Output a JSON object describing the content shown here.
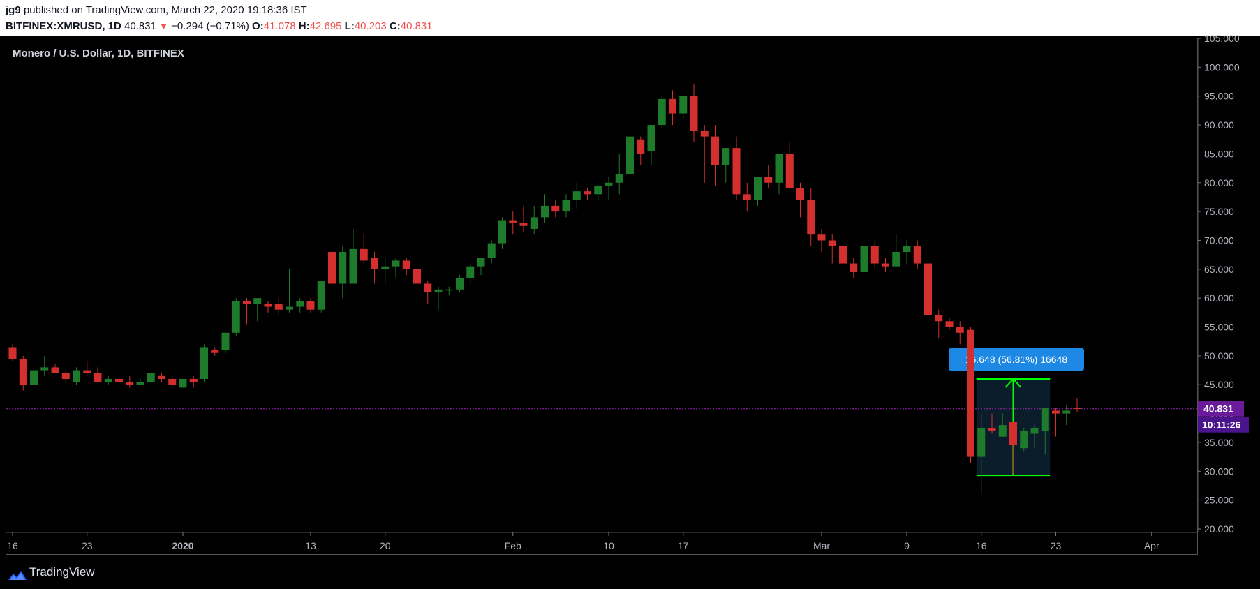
{
  "header": {
    "user": "jg9",
    "published": "published on TradingView.com, March 22, 2020 19:18:36 IST",
    "symbol_line": "BITFINEX:XMRUSD, 1D",
    "last": "40.831",
    "change": "−0.294 (−0.71%)",
    "o_label": "O:",
    "o_value": "41.078",
    "h_label": "H:",
    "h_value": "42.695",
    "l_label": "L:",
    "l_value": "40.203",
    "c_label": "C:",
    "c_value": "40.831"
  },
  "footer": {
    "brand": "TradingView",
    "logo_icon": "tradingview-logo-icon"
  },
  "colors": {
    "up": "#1e7b2b",
    "down": "#d32f2f",
    "measure_line": "#00ff00",
    "measure_fill": "#0d2233",
    "price_label": "#6a1b9a",
    "callout": "#1e88e5"
  },
  "chart_data": {
    "type": "candlestick",
    "title": "Monero / U.S. Dollar, 1D, BITFINEX",
    "ylim": [
      20,
      105
    ],
    "y_ticks": [
      "105.000",
      "100.000",
      "95.000",
      "90.000",
      "85.000",
      "80.000",
      "75.000",
      "70.000",
      "65.000",
      "60.000",
      "55.000",
      "50.000",
      "45.000",
      "40.000",
      "35.000",
      "30.000",
      "25.000",
      "20.000"
    ],
    "x_ticks": [
      {
        "label": "16",
        "day": 0
      },
      {
        "label": "23",
        "day": 7
      },
      {
        "label": "2020",
        "day": 16
      },
      {
        "label": "13",
        "day": 28
      },
      {
        "label": "20",
        "day": 35
      },
      {
        "label": "Feb",
        "day": 47
      },
      {
        "label": "10",
        "day": 56
      },
      {
        "label": "17",
        "day": 63
      },
      {
        "label": "Mar",
        "day": 76
      },
      {
        "label": "9",
        "day": 84
      },
      {
        "label": "16",
        "day": 91
      },
      {
        "label": "23",
        "day": 98
      },
      {
        "label": "Apr",
        "day": 107
      }
    ],
    "candles": [
      [
        51.5,
        52,
        49,
        49.5
      ],
      [
        49.5,
        50,
        44,
        45
      ],
      [
        45,
        48,
        44,
        47.5
      ],
      [
        47.5,
        50,
        46.5,
        48
      ],
      [
        48,
        48.5,
        47,
        47
      ],
      [
        47,
        47.5,
        45.5,
        46
      ],
      [
        45.5,
        48,
        45,
        47.5
      ],
      [
        47.5,
        49,
        46.5,
        47
      ],
      [
        47,
        48,
        45.5,
        45.5
      ],
      [
        45.5,
        46.5,
        45,
        46
      ],
      [
        46,
        46.5,
        44.5,
        45.5
      ],
      [
        45.5,
        46.5,
        44.5,
        45
      ],
      [
        45,
        46,
        45,
        45.5
      ],
      [
        45.5,
        47,
        45.5,
        47
      ],
      [
        46.5,
        47,
        45.5,
        46
      ],
      [
        46,
        46.5,
        44.5,
        45
      ],
      [
        44.5,
        46,
        44.5,
        46
      ],
      [
        46,
        46.5,
        44.5,
        45.5
      ],
      [
        46,
        52,
        45.5,
        51.5
      ],
      [
        51,
        51.5,
        50,
        50.5
      ],
      [
        51,
        54,
        50.5,
        54
      ],
      [
        54,
        60,
        53.5,
        59.5
      ],
      [
        59.5,
        60,
        55.5,
        59
      ],
      [
        59,
        60,
        56,
        60
      ],
      [
        59,
        59.5,
        57.5,
        58.5
      ],
      [
        59,
        60,
        57,
        58
      ],
      [
        58,
        65,
        57.5,
        58.5
      ],
      [
        58.5,
        60,
        57.5,
        59.5
      ],
      [
        59.5,
        60,
        57.5,
        58
      ],
      [
        58,
        63,
        57.5,
        63
      ],
      [
        68,
        70,
        61,
        62.5
      ],
      [
        62.5,
        69,
        60,
        68
      ],
      [
        62.5,
        72,
        63,
        68.5
      ],
      [
        68.5,
        71,
        66,
        66.5
      ],
      [
        67,
        68,
        62.5,
        65
      ],
      [
        65,
        67,
        62.5,
        65.5
      ],
      [
        65.5,
        67,
        63.5,
        66.5
      ],
      [
        66.5,
        67,
        64,
        65
      ],
      [
        65,
        66,
        61.5,
        62.5
      ],
      [
        62.5,
        63,
        59,
        61
      ],
      [
        61,
        62,
        58,
        61.5
      ],
      [
        61.5,
        62,
        60.5,
        61.5
      ],
      [
        61.5,
        64,
        61,
        63.5
      ],
      [
        63.5,
        66,
        62.5,
        65.5
      ],
      [
        65.5,
        67,
        64,
        67
      ],
      [
        67,
        70,
        66,
        69.5
      ],
      [
        69.5,
        74,
        68.5,
        73.5
      ],
      [
        73.5,
        75,
        71,
        73
      ],
      [
        73,
        76,
        71.5,
        72.5
      ],
      [
        72,
        76,
        71,
        74
      ],
      [
        74,
        78,
        73,
        76
      ],
      [
        76,
        77,
        74,
        75
      ],
      [
        75,
        78,
        74,
        77
      ],
      [
        77,
        80,
        75.5,
        78.5
      ],
      [
        78.5,
        79,
        77,
        78
      ],
      [
        78,
        80,
        77,
        79.5
      ],
      [
        79.5,
        81,
        77,
        80
      ],
      [
        80,
        85,
        78,
        81.5
      ],
      [
        81.5,
        88,
        81,
        88
      ],
      [
        87.5,
        88,
        83,
        85
      ],
      [
        85.5,
        90,
        83,
        90
      ],
      [
        90,
        95,
        89.5,
        94.5
      ],
      [
        94.5,
        96,
        90,
        92
      ],
      [
        92,
        95,
        91,
        95
      ],
      [
        95,
        97,
        87,
        89
      ],
      [
        89,
        90,
        80,
        88
      ],
      [
        88,
        90,
        79.5,
        83
      ],
      [
        83,
        86,
        80,
        86
      ],
      [
        86,
        88,
        77,
        78
      ],
      [
        78,
        80,
        75,
        77
      ],
      [
        77,
        81,
        76,
        81
      ],
      [
        81,
        83,
        79,
        80
      ],
      [
        80,
        85,
        78,
        85
      ],
      [
        85,
        87,
        79,
        79
      ],
      [
        79,
        80,
        74,
        77
      ],
      [
        77,
        79,
        69,
        71
      ],
      [
        71,
        72,
        68,
        70
      ],
      [
        70,
        71,
        66,
        69
      ],
      [
        69,
        70,
        65,
        66
      ],
      [
        66,
        67,
        63.5,
        64.5
      ],
      [
        64.5,
        69,
        64.5,
        69
      ],
      [
        69,
        70,
        65,
        66
      ],
      [
        66,
        67,
        64.5,
        65.5
      ],
      [
        65.5,
        71,
        65.5,
        68
      ],
      [
        68,
        70,
        66,
        69
      ],
      [
        69,
        70,
        65,
        66
      ],
      [
        66,
        66.5,
        56.5,
        57
      ],
      [
        57,
        58,
        53,
        56
      ],
      [
        56,
        56.5,
        54.5,
        55
      ],
      [
        55,
        56,
        52,
        54
      ],
      [
        54.5,
        55,
        31.5,
        32.5
      ],
      [
        32.5,
        40,
        26,
        37.5
      ],
      [
        37.5,
        40,
        36.5,
        37
      ],
      [
        36,
        40,
        36,
        38
      ],
      [
        38.5,
        38.5,
        29.5,
        34.5
      ],
      [
        34,
        37.5,
        33.5,
        37
      ],
      [
        36.5,
        38,
        34,
        37.5
      ],
      [
        37,
        41,
        33,
        41
      ],
      [
        40.5,
        41,
        36,
        40
      ],
      [
        40,
        41.5,
        38,
        40.5
      ],
      [
        41,
        42.7,
        40.2,
        40.8
      ]
    ],
    "last_price": 40.831,
    "last_price_label": "40.831",
    "countdown": "10:11:26",
    "measure": {
      "from_day": 91,
      "to_day": 97,
      "low": 29.3,
      "high": 46,
      "label": "16.648 (56.81%) 16648"
    }
  }
}
